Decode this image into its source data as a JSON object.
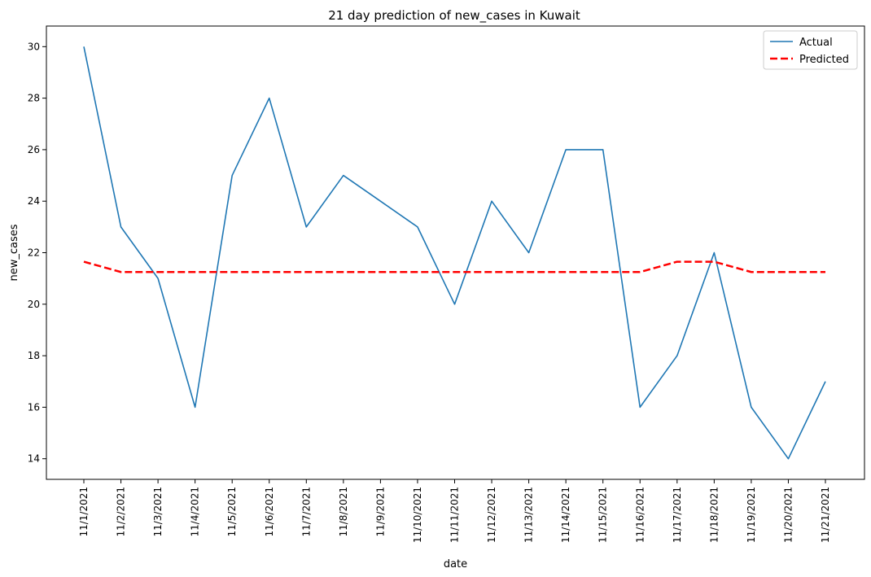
{
  "chart_data": {
    "type": "line",
    "title": "21 day prediction of new_cases in Kuwait",
    "xlabel": "date",
    "ylabel": "new_cases",
    "categories": [
      "11/1/2021",
      "11/2/2021",
      "11/3/2021",
      "11/4/2021",
      "11/5/2021",
      "11/6/2021",
      "11/7/2021",
      "11/8/2021",
      "11/9/2021",
      "11/10/2021",
      "11/11/2021",
      "11/12/2021",
      "11/13/2021",
      "11/14/2021",
      "11/15/2021",
      "11/16/2021",
      "11/17/2021",
      "11/18/2021",
      "11/19/2021",
      "11/20/2021",
      "11/21/2021"
    ],
    "series": [
      {
        "name": "Actual",
        "color": "#1f77b4",
        "style": "solid",
        "values": [
          30,
          23,
          21,
          16,
          25,
          28,
          23,
          25,
          24,
          23,
          20,
          24,
          22,
          26,
          26,
          16,
          18,
          22,
          16,
          14,
          17
        ]
      },
      {
        "name": "Predicted",
        "color": "#ff0000",
        "style": "dashed",
        "values": [
          21.65,
          21.25,
          21.25,
          21.25,
          21.25,
          21.25,
          21.25,
          21.25,
          21.25,
          21.25,
          21.25,
          21.25,
          21.25,
          21.25,
          21.25,
          21.25,
          21.65,
          21.65,
          21.25,
          21.25,
          21.25
        ]
      }
    ],
    "ylim": [
      13.2,
      30.8
    ],
    "yticks": [
      14,
      16,
      18,
      20,
      22,
      24,
      26,
      28,
      30
    ],
    "grid": false,
    "legend": "top-right"
  }
}
